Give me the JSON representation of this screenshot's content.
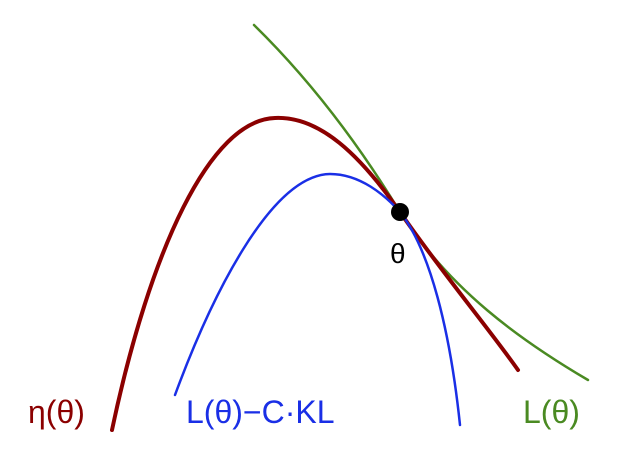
{
  "colors": {
    "eta": "#8b0000",
    "surrogate": "#1a2fe6",
    "L": "#4a8a22",
    "point": "#000000"
  },
  "labels": {
    "eta": "η(θ)",
    "surrogate": "L(θ)−C·KL",
    "L": "L(θ)",
    "point": "θ"
  }
}
